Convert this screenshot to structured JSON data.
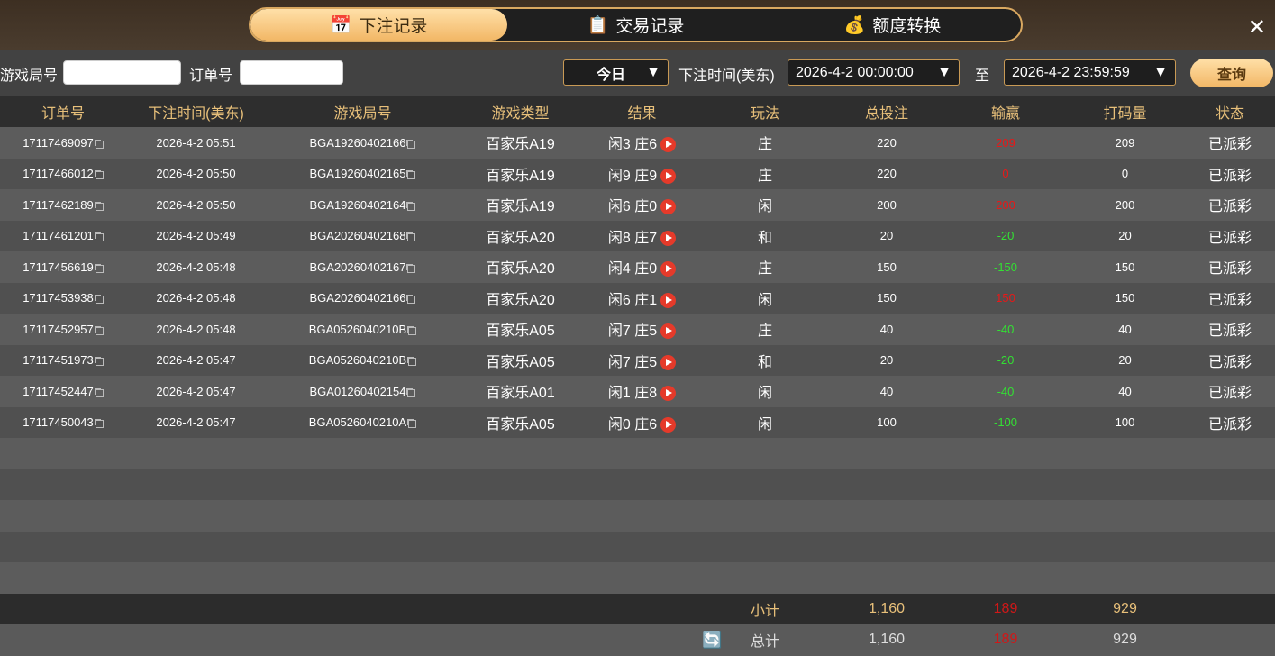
{
  "tabs": [
    {
      "label": "下注记录",
      "icon": "calendar-icon",
      "active": true
    },
    {
      "label": "交易记录",
      "icon": "clipboard-icon"
    },
    {
      "label": "额度转换",
      "icon": "coins-icon"
    }
  ],
  "filter": {
    "round_label": "游戏局号",
    "round_value": "",
    "order_label": "订单号",
    "order_value": "",
    "period": "今日",
    "time_label": "下注时间(美东)",
    "start": "2026-4-2 00:00:00",
    "to": "至",
    "end": "2026-4-2 23:59:59",
    "query": "查询"
  },
  "columns": [
    "订单号",
    "下注时间(美东)",
    "游戏局号",
    "游戏类型",
    "结果",
    "玩法",
    "总投注",
    "输赢",
    "打码量",
    "状态"
  ],
  "rows": [
    [
      "17117469097",
      "2026-4-2 05:51",
      "BGA19260402166",
      "百家乐A19",
      "闲3 庄6",
      "庄",
      "220",
      "209",
      "209",
      "已派彩"
    ],
    [
      "17117466012",
      "2026-4-2 05:50",
      "BGA19260402165",
      "百家乐A19",
      "闲9 庄9",
      "庄",
      "220",
      "0",
      "0",
      "已派彩"
    ],
    [
      "17117462189",
      "2026-4-2 05:50",
      "BGA19260402164",
      "百家乐A19",
      "闲6 庄0",
      "闲",
      "200",
      "200",
      "200",
      "已派彩"
    ],
    [
      "17117461201",
      "2026-4-2 05:49",
      "BGA20260402168",
      "百家乐A20",
      "闲8 庄7",
      "和",
      "20",
      "-20",
      "20",
      "已派彩"
    ],
    [
      "17117456619",
      "2026-4-2 05:48",
      "BGA20260402167",
      "百家乐A20",
      "闲4 庄0",
      "庄",
      "150",
      "-150",
      "150",
      "已派彩"
    ],
    [
      "17117453938",
      "2026-4-2 05:48",
      "BGA20260402166",
      "百家乐A20",
      "闲6 庄1",
      "闲",
      "150",
      "150",
      "150",
      "已派彩"
    ],
    [
      "17117452957",
      "2026-4-2 05:48",
      "BGA0526040210B",
      "百家乐A05",
      "闲7 庄5",
      "庄",
      "40",
      "-40",
      "40",
      "已派彩"
    ],
    [
      "17117451973",
      "2026-4-2 05:47",
      "BGA0526040210B",
      "百家乐A05",
      "闲7 庄5",
      "和",
      "20",
      "-20",
      "20",
      "已派彩"
    ],
    [
      "17117452447",
      "2026-4-2 05:47",
      "BGA01260402154",
      "百家乐A01",
      "闲1 庄8",
      "闲",
      "40",
      "-40",
      "40",
      "已派彩"
    ],
    [
      "17117450043",
      "2026-4-2 05:47",
      "BGA0526040210A",
      "百家乐A05",
      "闲0 庄6",
      "闲",
      "100",
      "-100",
      "100",
      "已派彩"
    ]
  ],
  "subtotal": {
    "label": "小计",
    "bet": "1,160",
    "winloss": "189",
    "turnover": "929"
  },
  "total": {
    "label": "总计",
    "bet": "1,160",
    "winloss": "189",
    "turnover": "929",
    "icon": "refresh-icon"
  },
  "colors": {
    "accent": "#f2b766",
    "win": "#e81818",
    "loss": "#33e033"
  }
}
